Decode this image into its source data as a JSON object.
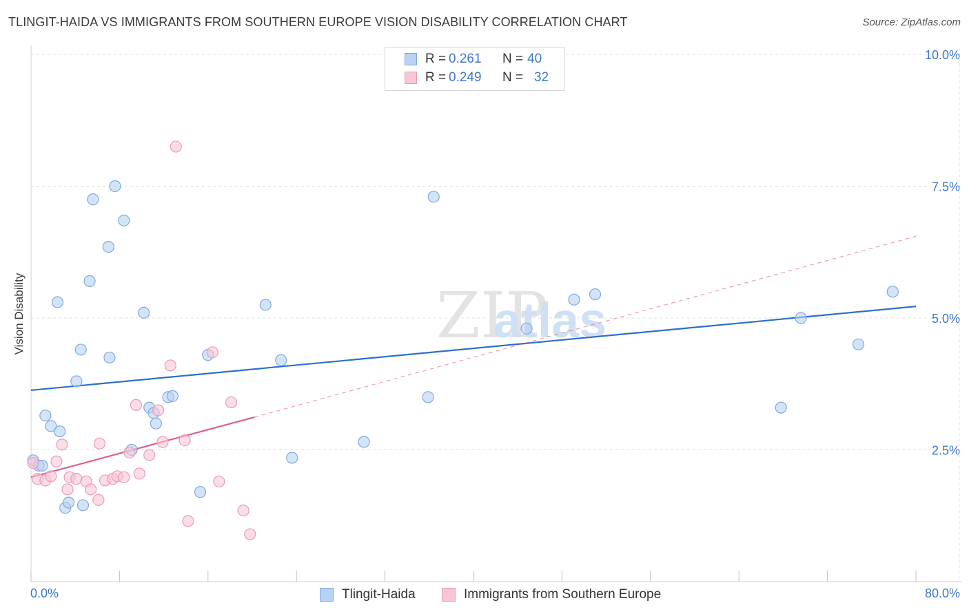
{
  "title": "TLINGIT-HAIDA VS IMMIGRANTS FROM SOUTHERN EUROPE VISION DISABILITY CORRELATION CHART",
  "source": "Source: ZipAtlas.com",
  "watermark": {
    "zip": "ZIP",
    "atlas": "atlas"
  },
  "legend_top": [
    {
      "r_label": "R =",
      "r_value": "0.261",
      "n_label": "N =",
      "n_value": "40",
      "fill": "#b8d2f3",
      "stroke": "#7fa9e0"
    },
    {
      "r_label": "R =",
      "r_value": "0.249",
      "n_label": "N =",
      "n_value": "32",
      "fill": "#f8c6d5",
      "stroke": "#ec9ab4"
    }
  ],
  "x_axis": {
    "min_label": "0.0%",
    "max_label": "80.0%"
  },
  "chart_data": {
    "type": "scatter",
    "title": "TLINGIT-HAIDA VS IMMIGRANTS FROM SOUTHERN EUROPE VISION DISABILITY CORRELATION CHART",
    "xlabel": "",
    "ylabel": "Vision Disability",
    "xlim": [
      0,
      80
    ],
    "ylim": [
      0,
      10
    ],
    "y_ticks": [
      {
        "value": 2.5,
        "label": "2.5%"
      },
      {
        "value": 5.0,
        "label": "5.0%"
      },
      {
        "value": 7.5,
        "label": "7.5%"
      },
      {
        "value": 10.0,
        "label": "10.0%"
      }
    ],
    "x_tick_values": [
      0,
      8,
      16,
      24,
      32,
      40,
      48,
      56,
      64,
      72,
      80
    ],
    "series": [
      {
        "name": "Tlingit-Haida",
        "color": "#7fa9e0",
        "fill": "#b8d2f3",
        "line_color": "#2a6fcb",
        "trend": {
          "x": [
            0,
            80
          ],
          "y": [
            3.63,
            5.22
          ],
          "dashed_extension": null
        },
        "points": [
          [
            0.2,
            2.3
          ],
          [
            0.7,
            2.2
          ],
          [
            1.0,
            2.2
          ],
          [
            1.3,
            3.15
          ],
          [
            1.8,
            2.95
          ],
          [
            2.4,
            5.3
          ],
          [
            2.6,
            2.85
          ],
          [
            3.1,
            1.4
          ],
          [
            3.4,
            1.5
          ],
          [
            4.1,
            3.8
          ],
          [
            4.5,
            4.4
          ],
          [
            4.7,
            1.45
          ],
          [
            5.3,
            5.7
          ],
          [
            5.6,
            7.25
          ],
          [
            7.0,
            6.35
          ],
          [
            7.1,
            4.25
          ],
          [
            7.6,
            7.5
          ],
          [
            8.4,
            6.85
          ],
          [
            9.1,
            2.5
          ],
          [
            10.2,
            5.1
          ],
          [
            10.7,
            3.3
          ],
          [
            11.1,
            3.2
          ],
          [
            11.3,
            3.0
          ],
          [
            12.4,
            3.5
          ],
          [
            12.8,
            3.52
          ],
          [
            15.3,
            1.7
          ],
          [
            16.0,
            4.3
          ],
          [
            21.2,
            5.25
          ],
          [
            22.6,
            4.2
          ],
          [
            23.6,
            2.35
          ],
          [
            30.1,
            2.65
          ],
          [
            35.9,
            3.5
          ],
          [
            36.4,
            7.3
          ],
          [
            44.8,
            4.8
          ],
          [
            49.1,
            5.35
          ],
          [
            51.0,
            5.45
          ],
          [
            67.8,
            3.3
          ],
          [
            69.6,
            5.0
          ],
          [
            74.8,
            4.5
          ],
          [
            77.9,
            5.5
          ]
        ]
      },
      {
        "name": "Immigrants from Southern Europe",
        "color": "#ec9ab4",
        "fill": "#f8c6d5",
        "line_color": "#e05c8a",
        "trend": {
          "x": [
            0,
            20.2
          ],
          "y": [
            1.98,
            3.12
          ],
          "dashed_extension": {
            "x": [
              20.2,
              80
            ],
            "y": [
              3.12,
              6.55
            ]
          }
        },
        "points": [
          [
            0.2,
            2.25
          ],
          [
            0.6,
            1.95
          ],
          [
            1.3,
            1.92
          ],
          [
            1.8,
            2.0
          ],
          [
            2.3,
            2.28
          ],
          [
            2.8,
            2.6
          ],
          [
            3.3,
            1.75
          ],
          [
            3.5,
            1.98
          ],
          [
            4.1,
            1.95
          ],
          [
            5.0,
            1.9
          ],
          [
            5.4,
            1.75
          ],
          [
            6.1,
            1.55
          ],
          [
            6.2,
            2.62
          ],
          [
            6.7,
            1.92
          ],
          [
            7.4,
            1.95
          ],
          [
            7.8,
            2.0
          ],
          [
            8.4,
            1.98
          ],
          [
            8.9,
            2.45
          ],
          [
            9.5,
            3.35
          ],
          [
            9.8,
            2.05
          ],
          [
            10.7,
            2.4
          ],
          [
            11.5,
            3.25
          ],
          [
            11.9,
            2.65
          ],
          [
            12.6,
            4.1
          ],
          [
            13.1,
            8.25
          ],
          [
            13.9,
            2.68
          ],
          [
            14.2,
            1.15
          ],
          [
            16.4,
            4.35
          ],
          [
            17.0,
            1.9
          ],
          [
            18.1,
            3.4
          ],
          [
            19.2,
            1.35
          ],
          [
            19.8,
            0.9
          ]
        ]
      }
    ]
  }
}
